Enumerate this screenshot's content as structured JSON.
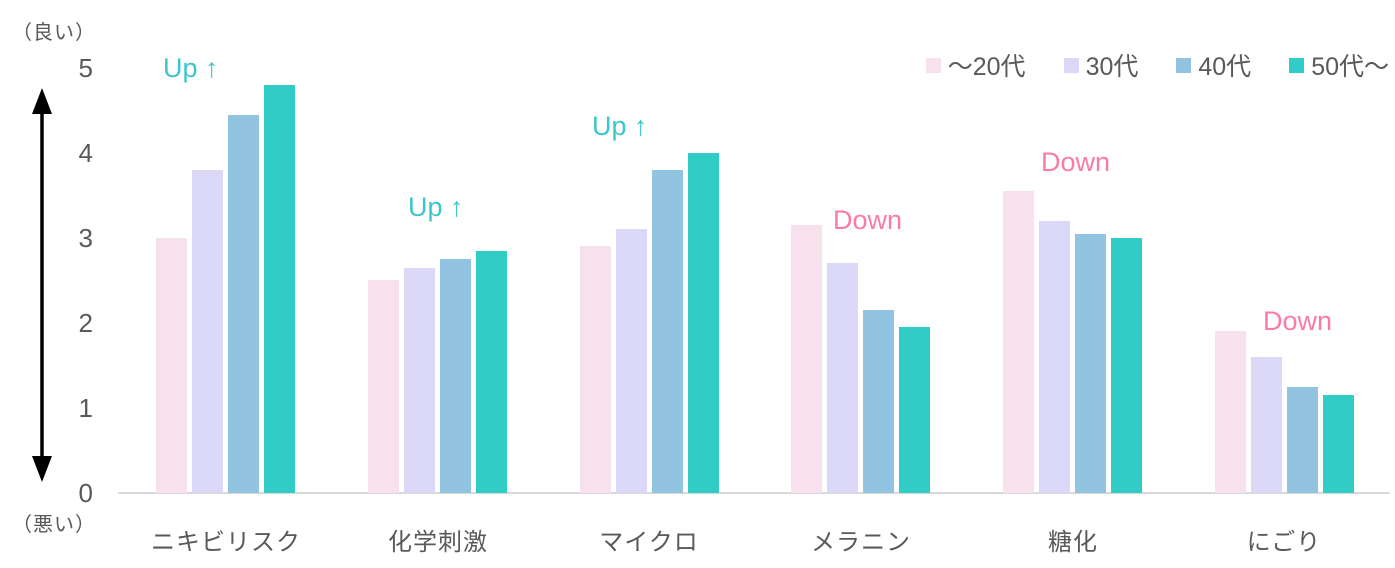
{
  "chart_data": {
    "type": "bar",
    "title": "",
    "categories": [
      "ニキビリスク",
      "化学刺激",
      "マイクロ",
      "メラニン",
      "糖化",
      "にごり"
    ],
    "series": [
      {
        "name": "～20代",
        "color": "#F7E1EC",
        "values": [
          3.0,
          2.5,
          2.9,
          3.15,
          3.55,
          1.9
        ]
      },
      {
        "name": "30代",
        "color": "#DCD9F8",
        "values": [
          3.8,
          2.65,
          3.1,
          2.7,
          3.2,
          1.6
        ]
      },
      {
        "name": "40代",
        "color": "#92C4E2",
        "values": [
          4.45,
          2.75,
          3.8,
          2.15,
          3.05,
          1.25
        ]
      },
      {
        "name": "50代～",
        "color": "#30CCC5",
        "values": [
          4.8,
          2.85,
          4.0,
          1.95,
          3.0,
          1.15
        ]
      }
    ],
    "annotations": [
      {
        "category": "ニキビリスク",
        "label": "Up ↑",
        "direction": "up"
      },
      {
        "category": "化学刺激",
        "label": "Up ↑",
        "direction": "up"
      },
      {
        "category": "マイクロ",
        "label": "Up ↑",
        "direction": "up"
      },
      {
        "category": "メラニン",
        "label": "Down",
        "direction": "down"
      },
      {
        "category": "糖化",
        "label": "Down",
        "direction": "down"
      },
      {
        "category": "にごり",
        "label": "Down",
        "direction": "down"
      }
    ],
    "y_axis": {
      "ticks": [
        0,
        1,
        2,
        3,
        4,
        5
      ],
      "ylim": [
        0,
        5
      ],
      "max_label": "（良い）",
      "min_label": "（悪い）"
    },
    "legend_position": "top-right",
    "grid": false
  },
  "colors": {
    "up_annotation": "#3BC6CB",
    "down_annotation": "#FB7BA5",
    "axis_text": "#595959",
    "axis_line": "#D9D9D9",
    "arrow": "#000000"
  }
}
